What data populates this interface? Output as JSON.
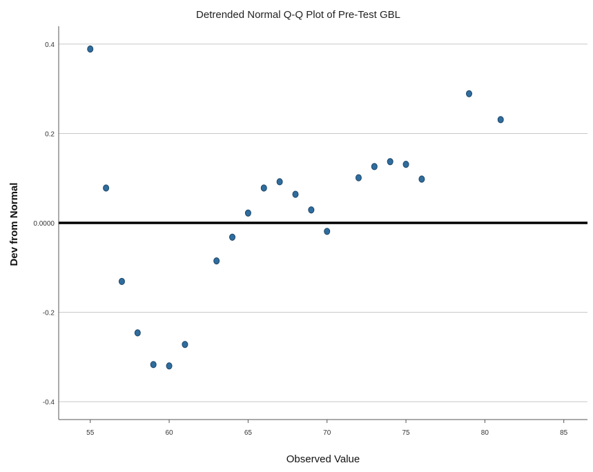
{
  "chart_data": {
    "type": "scatter",
    "title": "Detrended Normal Q-Q Plot of Pre-Test GBL",
    "xlabel": "Observed Value",
    "ylabel": "Dev from Normal",
    "xlim": [
      53,
      86.5
    ],
    "ylim": [
      -0.44,
      0.44
    ],
    "x_ticks": [
      55,
      60,
      65,
      70,
      75,
      80,
      85
    ],
    "x_tick_labels": [
      "55",
      "60",
      "65",
      "70",
      "75",
      "80",
      "85"
    ],
    "y_ticks": [
      -0.4,
      -0.2,
      0.0,
      0.2,
      0.4
    ],
    "y_tick_labels": [
      "-0.4",
      "-0.2",
      "0.0000",
      "0.2",
      "0.4"
    ],
    "grid": "horizontal",
    "reference_line_y": 0,
    "colors": {
      "marker": "#2f6d9e",
      "marker_edge": "#1d4566",
      "reference_line": "#000000",
      "grid": "#c8c8c8",
      "axis": "#555555"
    },
    "points": [
      {
        "x": 55,
        "y": 0.389
      },
      {
        "x": 56,
        "y": 0.078
      },
      {
        "x": 57,
        "y": -0.131
      },
      {
        "x": 58,
        "y": -0.246
      },
      {
        "x": 59,
        "y": -0.317
      },
      {
        "x": 60,
        "y": -0.32
      },
      {
        "x": 61,
        "y": -0.272
      },
      {
        "x": 63,
        "y": -0.085
      },
      {
        "x": 64,
        "y": -0.032
      },
      {
        "x": 65,
        "y": 0.022
      },
      {
        "x": 66,
        "y": 0.078
      },
      {
        "x": 67,
        "y": 0.092
      },
      {
        "x": 68,
        "y": 0.064
      },
      {
        "x": 69,
        "y": 0.029
      },
      {
        "x": 70,
        "y": -0.019
      },
      {
        "x": 72,
        "y": 0.101
      },
      {
        "x": 73,
        "y": 0.126
      },
      {
        "x": 74,
        "y": 0.137
      },
      {
        "x": 75,
        "y": 0.131
      },
      {
        "x": 76,
        "y": 0.098
      },
      {
        "x": 79,
        "y": 0.289
      },
      {
        "x": 81,
        "y": 0.231
      }
    ]
  }
}
